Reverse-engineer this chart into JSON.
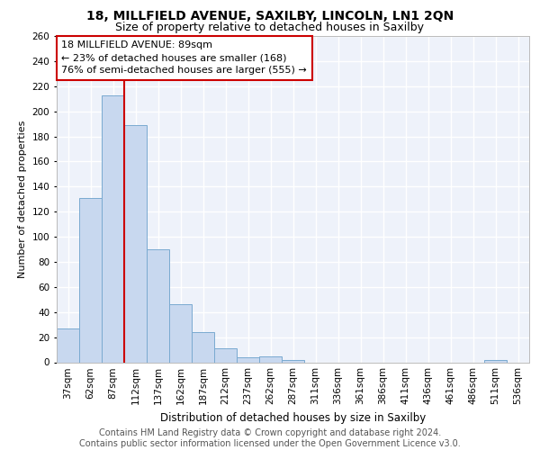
{
  "title1": "18, MILLFIELD AVENUE, SAXILBY, LINCOLN, LN1 2QN",
  "title2": "Size of property relative to detached houses in Saxilby",
  "xlabel": "Distribution of detached houses by size in Saxilby",
  "ylabel": "Number of detached properties",
  "categories": [
    "37sqm",
    "62sqm",
    "87sqm",
    "112sqm",
    "137sqm",
    "162sqm",
    "187sqm",
    "212sqm",
    "237sqm",
    "262sqm",
    "287sqm",
    "311sqm",
    "336sqm",
    "361sqm",
    "386sqm",
    "411sqm",
    "436sqm",
    "461sqm",
    "486sqm",
    "511sqm",
    "536sqm"
  ],
  "values": [
    27,
    131,
    213,
    189,
    90,
    46,
    24,
    11,
    4,
    5,
    2,
    0,
    0,
    0,
    0,
    0,
    0,
    0,
    0,
    2,
    0
  ],
  "bar_color": "#c8d8ef",
  "bar_edge_color": "#7aaad0",
  "vline_color": "#cc0000",
  "annotation_text": "18 MILLFIELD AVENUE: 89sqm\n← 23% of detached houses are smaller (168)\n76% of semi-detached houses are larger (555) →",
  "annotation_box_color": "#ffffff",
  "annotation_box_edge": "#cc0000",
  "ylim": [
    0,
    260
  ],
  "yticks": [
    0,
    20,
    40,
    60,
    80,
    100,
    120,
    140,
    160,
    180,
    200,
    220,
    240,
    260
  ],
  "footer": "Contains HM Land Registry data © Crown copyright and database right 2024.\nContains public sector information licensed under the Open Government Licence v3.0.",
  "background_color": "#eef2fa",
  "grid_color": "#ffffff",
  "title1_fontsize": 10,
  "title2_fontsize": 9,
  "xlabel_fontsize": 8.5,
  "ylabel_fontsize": 8,
  "tick_fontsize": 7.5,
  "annotation_fontsize": 8,
  "footer_fontsize": 7
}
